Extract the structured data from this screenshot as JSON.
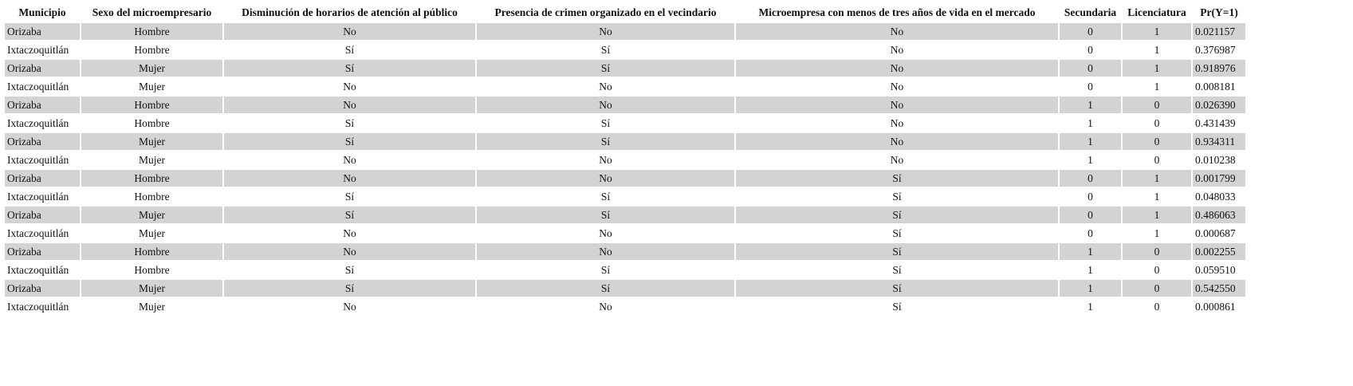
{
  "table": {
    "header": [
      "Municipio",
      "Sexo del microempresario",
      "Disminución de horarios de atención al público",
      "Presencia de crimen organizado en el vecindario",
      "Microempresa con menos de tres años de vida en el mercado",
      "Secundaria",
      "Licenciatura",
      "Pr(Y=1)"
    ],
    "rows": [
      [
        "Orizaba",
        "Hombre",
        "No",
        "No",
        "No",
        "0",
        "1",
        "0.021157"
      ],
      [
        "Ixtaczoquitlán",
        "Hombre",
        "Sí",
        "Sí",
        "No",
        "0",
        "1",
        "0.376987"
      ],
      [
        "Orizaba",
        "Mujer",
        "Sí",
        "Sí",
        "No",
        "0",
        "1",
        "0.918976"
      ],
      [
        "Ixtaczoquitlán",
        "Mujer",
        "No",
        "No",
        "No",
        "0",
        "1",
        "0.008181"
      ],
      [
        "Orizaba",
        "Hombre",
        "No",
        "No",
        "No",
        "1",
        "0",
        "0.026390"
      ],
      [
        "Ixtaczoquitlán",
        "Hombre",
        "Sí",
        "Sí",
        "No",
        "1",
        "0",
        "0.431439"
      ],
      [
        "Orizaba",
        "Mujer",
        "Sí",
        "Sí",
        "No",
        "1",
        "0",
        "0.934311"
      ],
      [
        "Ixtaczoquitlán",
        "Mujer",
        "No",
        "No",
        "No",
        "1",
        "0",
        "0.010238"
      ],
      [
        "Orizaba",
        "Hombre",
        "No",
        "No",
        "Sí",
        "0",
        "1",
        "0.001799"
      ],
      [
        "Ixtaczoquitlán",
        "Hombre",
        "Sí",
        "Sí",
        "Sí",
        "0",
        "1",
        "0.048033"
      ],
      [
        "Orizaba",
        "Mujer",
        "Sí",
        "Sí",
        "Sí",
        "0",
        "1",
        "0.486063"
      ],
      [
        "Ixtaczoquitlán",
        "Mujer",
        "No",
        "No",
        "Sí",
        "0",
        "1",
        "0.000687"
      ],
      [
        "Orizaba",
        "Hombre",
        "No",
        "No",
        "Sí",
        "1",
        "0",
        "0.002255"
      ],
      [
        "Ixtaczoquitlán",
        "Hombre",
        "Sí",
        "Sí",
        "Sí",
        "1",
        "0",
        "0.059510"
      ],
      [
        "Orizaba",
        "Mujer",
        "Sí",
        "Sí",
        "Sí",
        "1",
        "0",
        "0.542550"
      ],
      [
        "Ixtaczoquitlán",
        "Mujer",
        "No",
        "No",
        "Sí",
        "1",
        "0",
        "0.000861"
      ]
    ]
  }
}
